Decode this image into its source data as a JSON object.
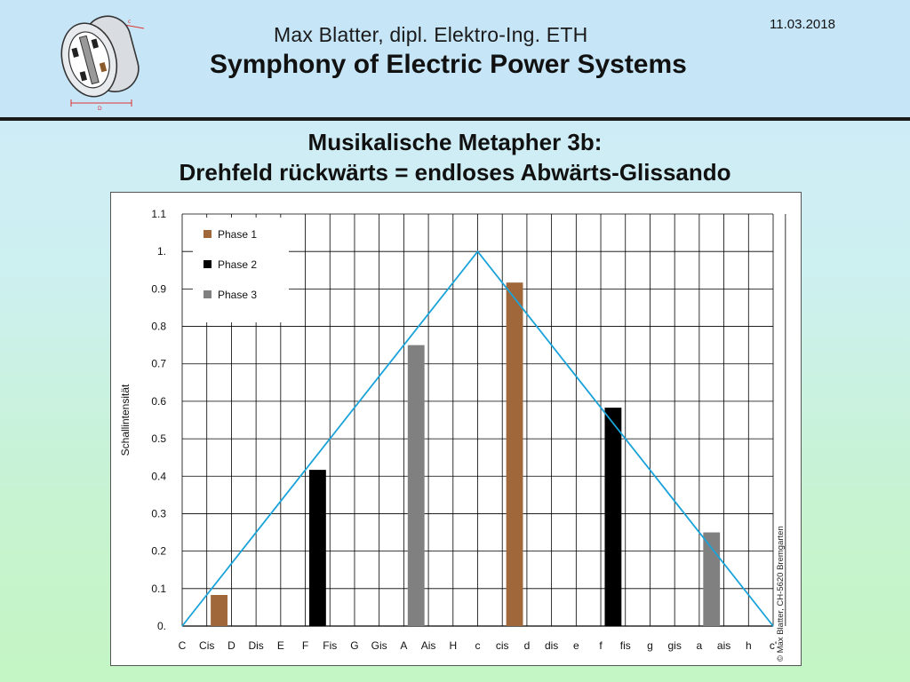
{
  "header": {
    "author": "Max Blatter, dipl. Elektro-Ing. ETH",
    "subtitle": "Symphony of Electric Power Systems",
    "date": "11.03.2018"
  },
  "slide": {
    "title_line1": "Musikalische Metapher 3b:",
    "title_line2": "Drehfeld rückwärts = endloses Abwärts-Glissando"
  },
  "copyright": "© Max Blatter, CH-5620 Bremgarten",
  "chart_data": {
    "type": "bar",
    "ylabel": "Schallintensität",
    "ylim": [
      0,
      1.1
    ],
    "y_ticks": [
      "0.",
      "0.1",
      "0.2",
      "0.3",
      "0.4",
      "0.5",
      "0.6",
      "0.7",
      "0.8",
      "0.9",
      "1.",
      "1.1"
    ],
    "categories": [
      "C",
      "Cis",
      "D",
      "Dis",
      "E",
      "F",
      "Fis",
      "G",
      "Gis",
      "A",
      "Ais",
      "H",
      "c",
      "cis",
      "d",
      "dis",
      "e",
      "f",
      "fis",
      "g",
      "gis",
      "a",
      "ais",
      "h",
      "c'"
    ],
    "grid": true,
    "legend_position": "top-left",
    "colors": {
      "Phase 1": "#a0673a",
      "Phase 2": "#000000",
      "Phase 3": "#808080",
      "envelope": "#1aa3d9"
    },
    "series": [
      {
        "name": "Phase 1",
        "points": [
          {
            "x": "Cis",
            "y": 0.083
          },
          {
            "x": "cis",
            "y": 0.917
          }
        ]
      },
      {
        "name": "Phase 2",
        "points": [
          {
            "x": "F",
            "y": 0.417
          },
          {
            "x": "f",
            "y": 0.583
          }
        ]
      },
      {
        "name": "Phase 3",
        "points": [
          {
            "x": "A",
            "y": 0.75
          },
          {
            "x": "a",
            "y": 0.25
          }
        ]
      }
    ],
    "envelope": {
      "points": [
        {
          "x": "C",
          "y": 0
        },
        {
          "x": "c",
          "y": 1.0
        },
        {
          "x": "c'",
          "y": 0
        }
      ]
    }
  }
}
